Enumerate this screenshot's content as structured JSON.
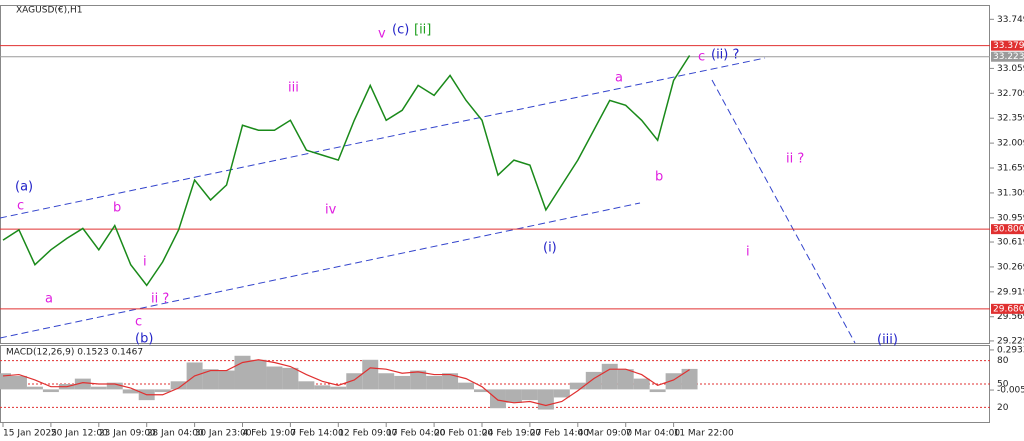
{
  "chart_data": [
    {
      "type": "line",
      "title": "XAGUSD(€),H1",
      "categories": [
        "15 Jan 2025",
        null,
        null,
        "20 Jan 12:00",
        null,
        null,
        "23 Jan 09:00",
        null,
        null,
        "28 Jan 04:00",
        null,
        null,
        "30 Jan 23:00",
        null,
        null,
        "4 Feb 19:00",
        null,
        null,
        "7 Feb 14:00",
        null,
        null,
        "12 Feb 09:00",
        null,
        null,
        "17 Feb 04:00",
        null,
        null,
        "20 Feb 01:00",
        null,
        null,
        "24 Feb 19:00",
        null,
        null,
        "27 Feb 14:00",
        null,
        null,
        "4 Mar 09:00",
        null,
        null,
        "7 Mar 04:00",
        null,
        null,
        "11 Mar 22:00",
        null
      ],
      "series": [
        {
          "name": "XAGUSD",
          "color": "#1a8a1a",
          "values": [
            30.645,
            30.79,
            30.3,
            30.51,
            30.67,
            30.81,
            30.51,
            30.85,
            30.3,
            30.01,
            30.34,
            30.79,
            31.49,
            31.21,
            31.42,
            32.26,
            32.19,
            32.19,
            32.33,
            31.91,
            31.84,
            31.77,
            32.33,
            32.82,
            32.33,
            32.47,
            32.82,
            32.68,
            32.96,
            32.61,
            32.33,
            31.56,
            31.77,
            31.7,
            31.07,
            31.42,
            31.77,
            32.19,
            32.61,
            32.54,
            32.33,
            32.05,
            32.89,
            33.24
          ]
        }
      ],
      "ylim": [
        29.2,
        33.95
      ],
      "yticks": [
        33.749,
        33.059,
        32.709,
        32.359,
        32.009,
        31.659,
        31.309,
        30.959,
        30.619,
        30.269,
        29.919,
        29.569,
        29.229
      ],
      "hlines": [
        {
          "value": 33.379,
          "color": "#e03030"
        },
        {
          "value": 33.223,
          "color": "#9a9a9a"
        },
        {
          "value": 30.8,
          "label": "30.800",
          "color": "#e03030"
        },
        {
          "value": 29.68,
          "label": "29.680",
          "color": "#e03030"
        }
      ],
      "annotations": [
        {
          "text": "(a)",
          "color": "#2424c8"
        },
        {
          "text": "c",
          "color": "#e020e0"
        },
        {
          "text": "a",
          "color": "#e020e0"
        },
        {
          "text": "b",
          "color": "#e020e0"
        },
        {
          "text": "i",
          "color": "#e020e0"
        },
        {
          "text": "ii ?",
          "color": "#e020e0"
        },
        {
          "text": "c",
          "color": "#e020e0"
        },
        {
          "text": "(b)",
          "color": "#2424c8"
        },
        {
          "text": "iii",
          "color": "#e020e0"
        },
        {
          "text": "iv",
          "color": "#e020e0"
        },
        {
          "text": "v",
          "color": "#e020e0"
        },
        {
          "text": "(c)",
          "color": "#2424c8"
        },
        {
          "text": "[ii]",
          "color": "#20a020"
        },
        {
          "text": "a",
          "color": "#e020e0"
        },
        {
          "text": "b",
          "color": "#e020e0"
        },
        {
          "text": "(i)",
          "color": "#2424c8"
        },
        {
          "text": "c",
          "color": "#e020e0"
        },
        {
          "text": "(ii) ?",
          "color": "#2424c8"
        },
        {
          "text": "ii ?",
          "color": "#e020e0"
        },
        {
          "text": "i",
          "color": "#e020e0"
        },
        {
          "text": "(iii)",
          "color": "#2424c8"
        }
      ]
    },
    {
      "type": "macd",
      "title": "MACD(12,26,9) 0.1523 0.1467",
      "series": [
        {
          "name": "MACD",
          "color": "#b0b0b0",
          "values": [
            0.12,
            0.1,
            0.02,
            -0.02,
            0.04,
            0.08,
            0.02,
            0.05,
            -0.03,
            -0.08,
            -0.02,
            0.06,
            0.2,
            0.15,
            0.14,
            0.25,
            0.22,
            0.17,
            0.16,
            0.06,
            0.03,
            0.02,
            0.12,
            0.22,
            0.12,
            0.1,
            0.14,
            0.1,
            0.12,
            0.05,
            -0.02,
            -0.14,
            -0.1,
            -0.08,
            -0.15,
            -0.06,
            0.05,
            0.13,
            0.19,
            0.15,
            0.08,
            -0.02,
            0.12,
            0.1523
          ]
        },
        {
          "name": "Signal",
          "color": "#e03030",
          "values": [
            0.1,
            0.11,
            0.07,
            0.02,
            0.02,
            0.05,
            0.04,
            0.04,
            0.01,
            -0.04,
            -0.04,
            0.01,
            0.1,
            0.14,
            0.14,
            0.2,
            0.22,
            0.2,
            0.17,
            0.11,
            0.06,
            0.03,
            0.07,
            0.16,
            0.15,
            0.12,
            0.13,
            0.11,
            0.11,
            0.08,
            0.02,
            -0.08,
            -0.1,
            -0.09,
            -0.12,
            -0.09,
            -0.01,
            0.08,
            0.15,
            0.15,
            0.11,
            0.03,
            0.07,
            0.1467
          ]
        }
      ],
      "ylim": [
        -0.25,
        0.33
      ],
      "yticks": [
        0.2933,
        {
          "value": -0.005,
          "label": "-0.0050"
        }
      ],
      "y2lim": [
        0,
        100
      ],
      "y2ticks": [
        80,
        50,
        20
      ]
    }
  ]
}
